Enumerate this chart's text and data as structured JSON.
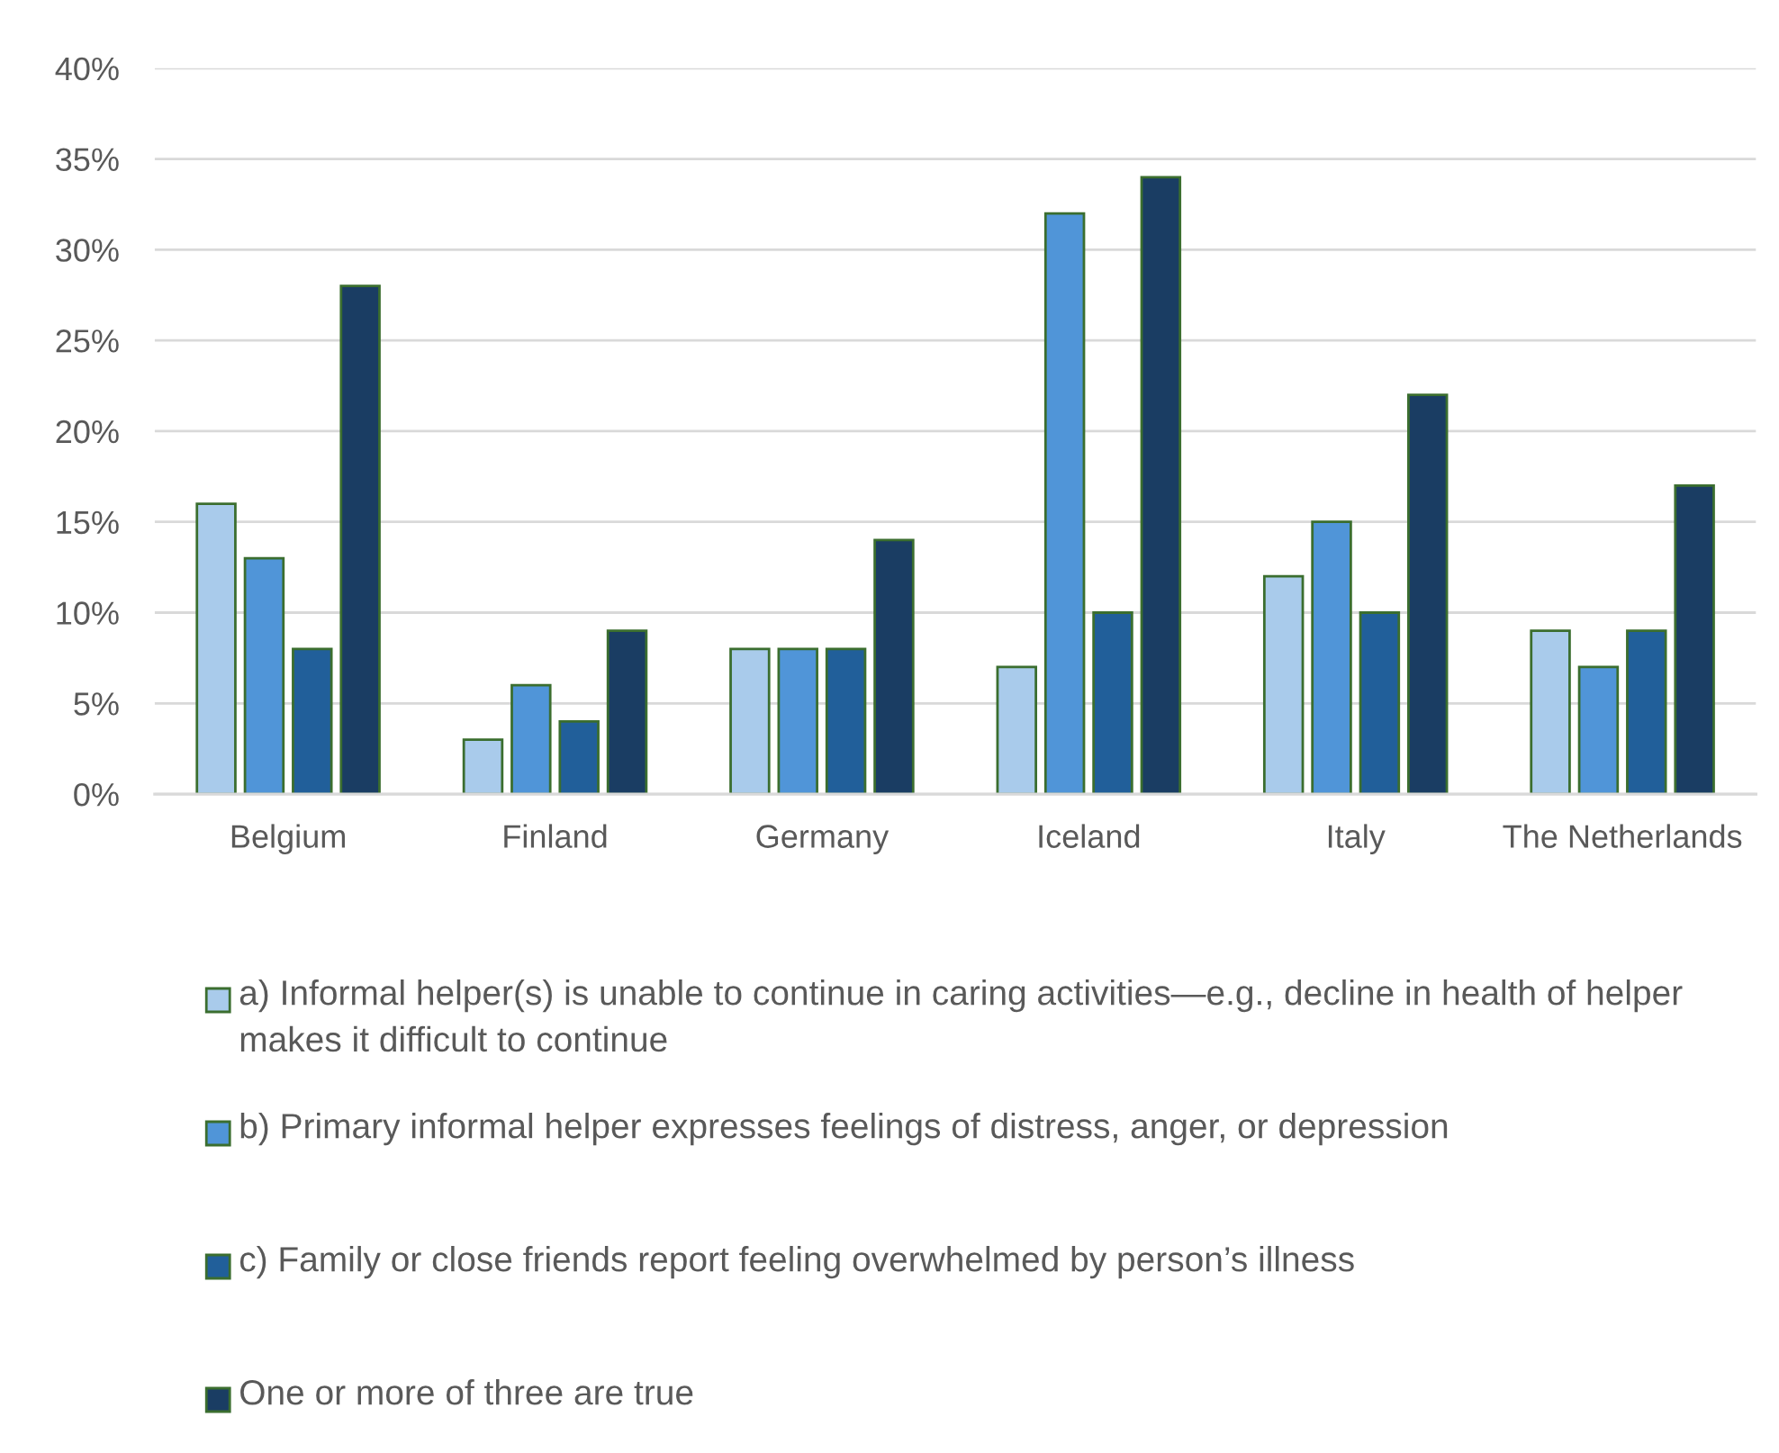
{
  "chart_data": {
    "type": "bar",
    "categories": [
      "Belgium",
      "Finland",
      "Germany",
      "Iceland",
      "Italy",
      "The Netherlands"
    ],
    "series": [
      {
        "name": "a) Informal helper(s) is unable to continue in caring activities—e.g., decline in health of helper makes it difficult to continue",
        "color": "#a9cbeb",
        "values": [
          16,
          3,
          8,
          7,
          12,
          9
        ]
      },
      {
        "name": "b) Primary informal helper expresses feelings of distress, anger, or depression",
        "color": "#5095d8",
        "values": [
          13,
          6,
          8,
          32,
          15,
          7
        ]
      },
      {
        "name": "c) Family or close friends report feeling overwhelmed by person’s illness",
        "color": "#215f9a",
        "values": [
          8,
          4,
          8,
          10,
          10,
          9
        ]
      },
      {
        "name": "One or more of three are true",
        "color": "#1a3d63",
        "values": [
          28,
          9,
          14,
          34,
          22,
          17
        ]
      }
    ],
    "ylim": [
      0,
      40
    ],
    "yticks": [
      {
        "value": 0,
        "label": "0%"
      },
      {
        "value": 5,
        "label": "5%"
      },
      {
        "value": 10,
        "label": "10%"
      },
      {
        "value": 15,
        "label": "15%"
      },
      {
        "value": 20,
        "label": "20%"
      },
      {
        "value": 25,
        "label": "25%"
      },
      {
        "value": 30,
        "label": "30%"
      },
      {
        "value": 35,
        "label": "35%"
      },
      {
        "value": 40,
        "label": "40%"
      }
    ],
    "grid": "y",
    "legend": "bottom"
  }
}
